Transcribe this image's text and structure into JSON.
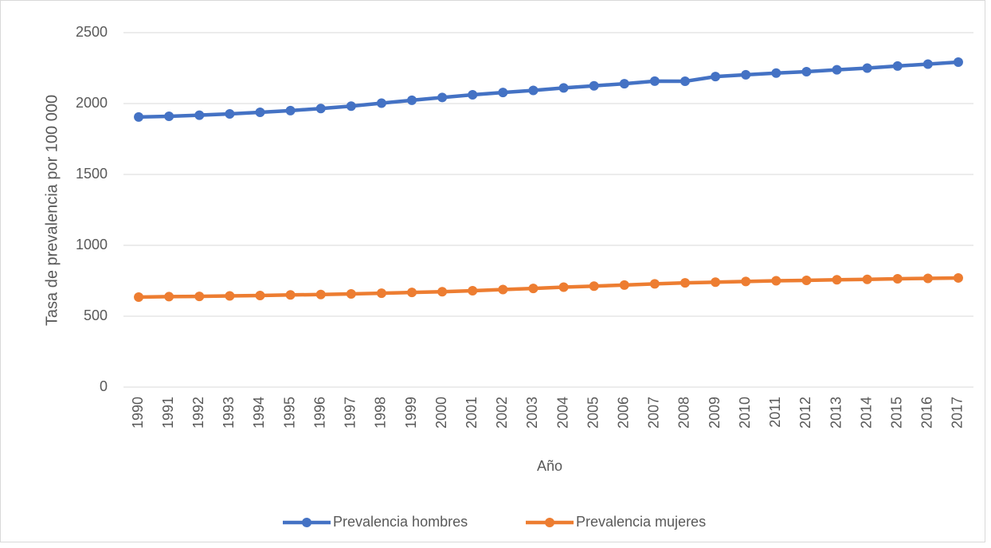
{
  "chart_data": {
    "type": "line",
    "categories": [
      "1990",
      "1991",
      "1992",
      "1993",
      "1994",
      "1995",
      "1996",
      "1997",
      "1998",
      "1999",
      "2000",
      "2001",
      "2002",
      "2003",
      "2004",
      "2005",
      "2006",
      "2007",
      "2008",
      "2009",
      "2010",
      "2011",
      "2012",
      "2013",
      "2014",
      "2015",
      "2016",
      "2017"
    ],
    "series": [
      {
        "name": "Prevalencia hombres",
        "color": "#4472c4",
        "values": [
          1905,
          1910,
          1918,
          1927,
          1938,
          1950,
          1965,
          1982,
          2003,
          2023,
          2043,
          2062,
          2078,
          2093,
          2110,
          2125,
          2140,
          2158,
          2157,
          2190,
          2203,
          2215,
          2225,
          2238,
          2250,
          2265,
          2278,
          2292
        ]
      },
      {
        "name": "Prevalencia mujeres",
        "color": "#ed7d31",
        "values": [
          635,
          638,
          640,
          643,
          646,
          650,
          653,
          657,
          662,
          668,
          673,
          680,
          688,
          696,
          705,
          712,
          720,
          728,
          735,
          740,
          745,
          750,
          753,
          757,
          760,
          764,
          767,
          770
        ]
      }
    ],
    "xlabel": "Año",
    "ylabel": "Tasa de prevalencia por 100 000",
    "ylim": [
      0,
      2500
    ],
    "yticks": [
      0,
      500,
      1000,
      1500,
      2000,
      2500
    ],
    "grid": true,
    "legend": "bottom"
  }
}
